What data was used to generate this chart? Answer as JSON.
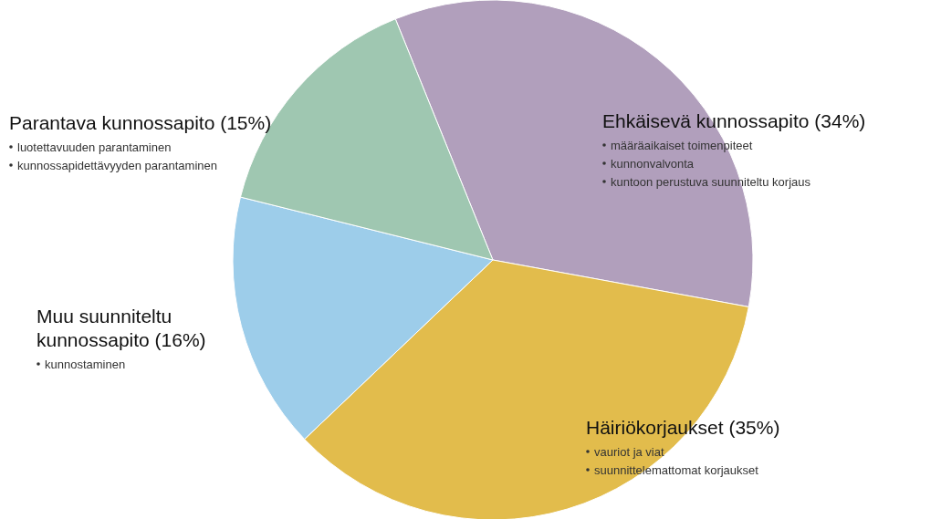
{
  "chart_data": {
    "type": "pie",
    "categories": [
      "Ehkäisevä kunnossapito",
      "Häiriökorjaukset",
      "Muu suunniteltu kunnossapito",
      "Parantava kunnossapito"
    ],
    "values": [
      34,
      35,
      16,
      15
    ],
    "colors": [
      "#b19fbc",
      "#e2bc4c",
      "#9dcdea",
      "#9fc7b1"
    ],
    "value_labels": [
      "(34%)",
      "(35%)",
      "(16%)",
      "(15%)"
    ],
    "annotations": [
      {
        "text": "määräaikaiset toimenpiteet",
        "x": "Ehkäisevä kunnossapito"
      },
      {
        "text": "kunnonvalvonta",
        "x": "Ehkäisevä kunnossapito"
      },
      {
        "text": "kuntoon perustuva suunniteltu korjaus",
        "x": "Ehkäisevä kunnossapito"
      },
      {
        "text": "vauriot ja viat",
        "x": "Häiriökorjaukset"
      },
      {
        "text": "suunnittelemattomat korjaukset",
        "x": "Häiriökorjaukset"
      },
      {
        "text": "kunnostaminen",
        "x": "Muu suunniteltu kunnossapito"
      },
      {
        "text": "luotettavuuden parantaminen",
        "x": "Parantava kunnossapito"
      },
      {
        "text": "kunnossapidettävyyden parantaminen",
        "x": "Parantava kunnossapito"
      }
    ]
  }
}
